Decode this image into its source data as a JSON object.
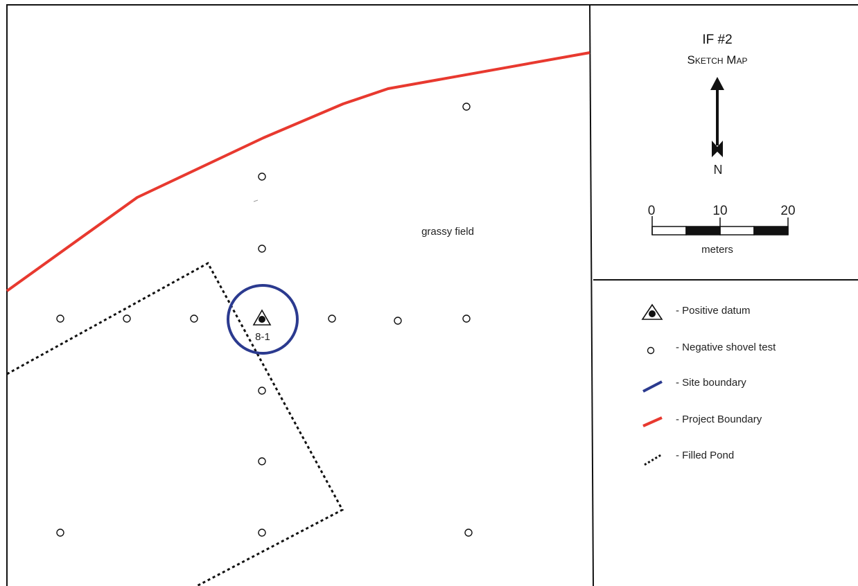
{
  "title": {
    "line1": "IF #2",
    "line2": "Sketch Map"
  },
  "north_arrow": {
    "label": "N"
  },
  "scale_bar": {
    "ticks": [
      "0",
      "10",
      "20"
    ],
    "unit": "meters"
  },
  "map": {
    "field_label": "grassy field",
    "datum_label": "8-1"
  },
  "legend": {
    "items": [
      {
        "key": "positive-datum",
        "label": "- Positive datum",
        "symbol": "triangle-dot"
      },
      {
        "key": "negative-shovel-test",
        "label": "- Negative shovel test",
        "symbol": "open-circle"
      },
      {
        "key": "site-boundary",
        "label": "- Site boundary",
        "symbol": "line",
        "color": "#2b3a8f"
      },
      {
        "key": "project-boundary",
        "label": "- Project Boundary",
        "symbol": "line",
        "color": "#e8392f"
      },
      {
        "key": "filled-pond",
        "label": "- Filled Pond",
        "symbol": "dashed-line",
        "color": "#111111"
      }
    ]
  },
  "colors": {
    "site_boundary": "#2b3a8f",
    "project_boundary": "#e8392f",
    "filled_pond": "#111111",
    "frame": "#111111"
  }
}
